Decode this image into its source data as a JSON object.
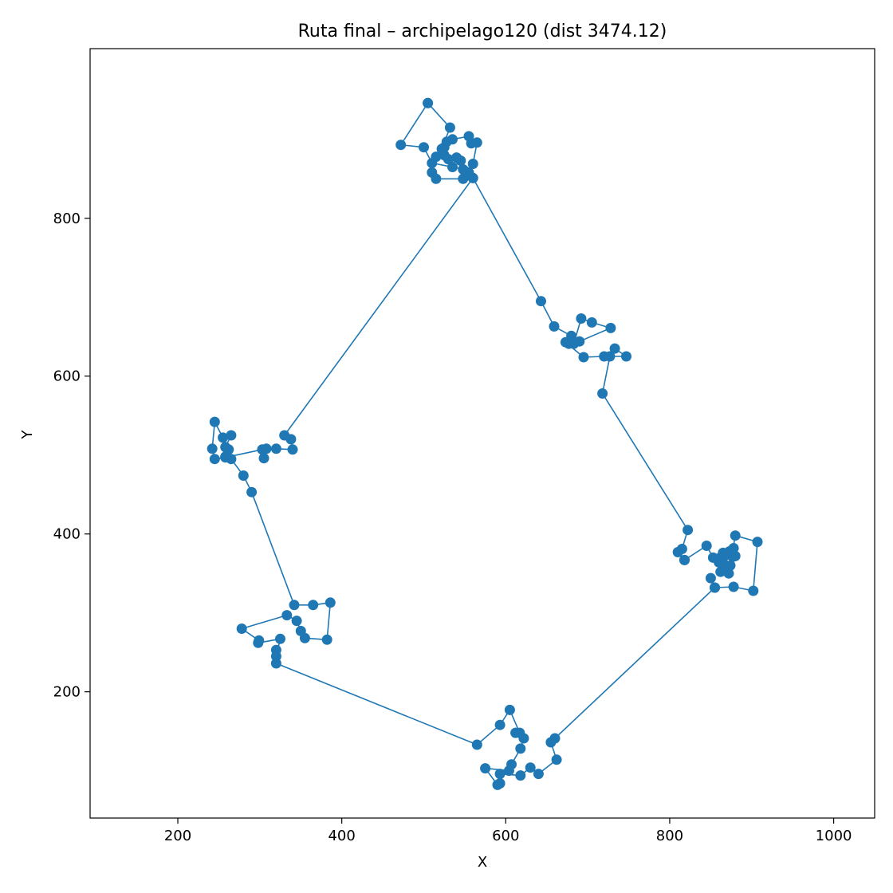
{
  "chart_data": {
    "type": "line",
    "title": "Ruta final – archipelago120 (dist 3474.12)",
    "xlabel": "X",
    "ylabel": "Y",
    "xlim": [
      93,
      1050
    ],
    "ylim": [
      40,
      1015
    ],
    "x_ticks": [
      200,
      400,
      600,
      800,
      1000
    ],
    "y_ticks": [
      200,
      400,
      600,
      800
    ],
    "x_tick_labels": [
      "200",
      "400",
      "600",
      "800",
      "1000"
    ],
    "y_tick_labels": [
      "200",
      "400",
      "600",
      "800"
    ],
    "grid": false,
    "legend": "none",
    "series": [
      {
        "color": "#1f77b4",
        "points": [
          [
            505,
            946
          ],
          [
            472,
            893
          ],
          [
            500,
            890
          ],
          [
            510,
            870
          ],
          [
            535,
            865
          ],
          [
            548,
            862
          ],
          [
            545,
            873
          ],
          [
            540,
            877
          ],
          [
            530,
            875
          ],
          [
            525,
            880
          ],
          [
            515,
            878
          ],
          [
            510,
            858
          ],
          [
            515,
            850
          ],
          [
            548,
            850
          ],
          [
            550,
            860
          ],
          [
            555,
            858
          ],
          [
            560,
            869
          ],
          [
            565,
            896
          ],
          [
            558,
            895
          ],
          [
            555,
            904
          ],
          [
            535,
            900
          ],
          [
            528,
            897
          ],
          [
            525,
            890
          ],
          [
            522,
            888
          ],
          [
            532,
            915
          ],
          [
            505,
            946
          ]
        ]
      },
      {
        "color": "#1f77b4",
        "points": [
          [
            560,
            851
          ],
          [
            643,
            695
          ],
          [
            659,
            663
          ],
          [
            680,
            651
          ],
          [
            677,
            641
          ],
          [
            690,
            644
          ],
          [
            728,
            661
          ],
          [
            705,
            668
          ],
          [
            692,
            673
          ],
          [
            683,
            641
          ],
          [
            673,
            643
          ],
          [
            695,
            624
          ],
          [
            720,
            625
          ],
          [
            733,
            635
          ],
          [
            747,
            625
          ],
          [
            727,
            625
          ],
          [
            718,
            578
          ],
          [
            822,
            405
          ],
          [
            815,
            381
          ],
          [
            810,
            377
          ],
          [
            818,
            367
          ]
        ]
      },
      {
        "color": "#1f77b4",
        "points": [
          [
            818,
            367
          ],
          [
            845,
            385
          ],
          [
            853,
            370
          ],
          [
            860,
            369
          ],
          [
            865,
            376
          ],
          [
            873,
            378
          ],
          [
            878,
            382
          ],
          [
            874,
            360
          ],
          [
            870,
            356
          ],
          [
            866,
            362
          ],
          [
            862,
            352
          ],
          [
            877,
            371
          ],
          [
            868,
            373
          ],
          [
            860,
            364
          ],
          [
            880,
            372
          ],
          [
            872,
            350
          ],
          [
            880,
            398
          ],
          [
            907,
            390
          ],
          [
            902,
            328
          ],
          [
            878,
            333
          ],
          [
            855,
            332
          ],
          [
            850,
            344
          ]
        ]
      },
      {
        "color": "#1f77b4",
        "points": [
          [
            855,
            332
          ],
          [
            660,
            141
          ],
          [
            655,
            136
          ],
          [
            662,
            114
          ],
          [
            640,
            96
          ],
          [
            630,
            104
          ],
          [
            618,
            94
          ],
          [
            593,
            96
          ],
          [
            593,
            84
          ],
          [
            590,
            82
          ],
          [
            575,
            103
          ],
          [
            604,
            100
          ],
          [
            607,
            108
          ],
          [
            618,
            128
          ],
          [
            622,
            141
          ],
          [
            612,
            148
          ],
          [
            617,
            148
          ],
          [
            605,
            177
          ],
          [
            593,
            158
          ],
          [
            565,
            133
          ],
          [
            320,
            236
          ],
          [
            320,
            253
          ],
          [
            320,
            245
          ],
          [
            325,
            267
          ],
          [
            298,
            262
          ],
          [
            299,
            265
          ],
          [
            278,
            280
          ],
          [
            333,
            297
          ],
          [
            345,
            290
          ],
          [
            350,
            277
          ],
          [
            355,
            268
          ],
          [
            382,
            266
          ],
          [
            386,
            313
          ],
          [
            365,
            310
          ],
          [
            342,
            310
          ],
          [
            290,
            453
          ],
          [
            280,
            474
          ],
          [
            265,
            495
          ],
          [
            262,
            507
          ],
          [
            258,
            498
          ],
          [
            258,
            510
          ],
          [
            265,
            525
          ],
          [
            255,
            522
          ],
          [
            245,
            542
          ],
          [
            242,
            508
          ],
          [
            245,
            495
          ],
          [
            258,
            497
          ],
          [
            303,
            507
          ],
          [
            305,
            496
          ],
          [
            308,
            508
          ],
          [
            320,
            508
          ],
          [
            340,
            507
          ],
          [
            338,
            520
          ],
          [
            330,
            525
          ],
          [
            560,
            851
          ]
        ]
      }
    ]
  }
}
